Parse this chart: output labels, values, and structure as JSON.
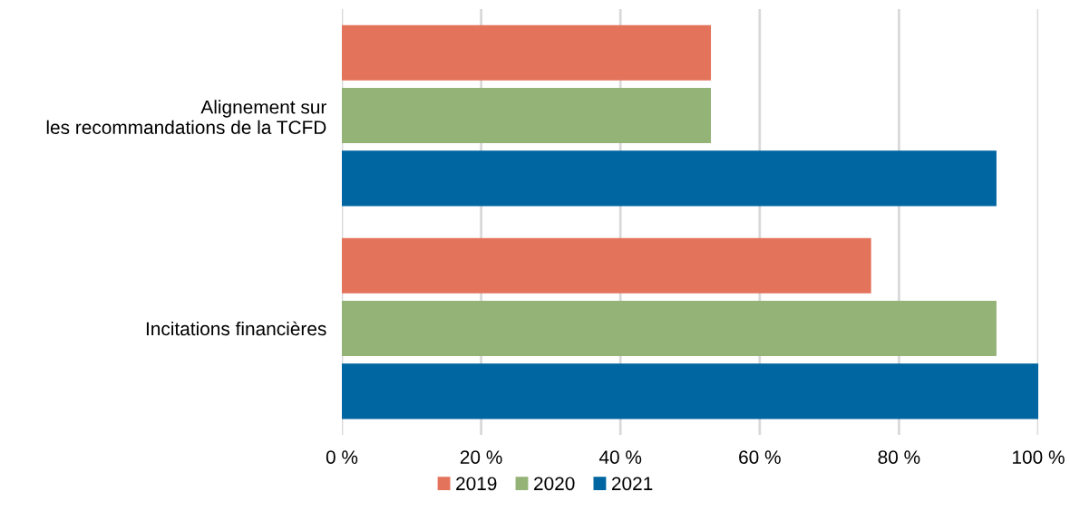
{
  "chart_data": {
    "type": "bar",
    "orientation": "horizontal",
    "categories": [
      "Alignement sur\nles recommandations de la TCFD",
      "Incitations financières"
    ],
    "series": [
      {
        "name": "2019",
        "color": "#e4735c",
        "values": [
          53,
          76
        ]
      },
      {
        "name": "2020",
        "color": "#94b377",
        "values": [
          53,
          94
        ]
      },
      {
        "name": "2021",
        "color": "#0066a1",
        "values": [
          94,
          100
        ]
      }
    ],
    "xlim": [
      0,
      100
    ],
    "xticks": [
      {
        "value": 0,
        "label": "0 %"
      },
      {
        "value": 20,
        "label": "20 %"
      },
      {
        "value": 40,
        "label": "40 %"
      },
      {
        "value": 60,
        "label": "60 %"
      },
      {
        "value": 80,
        "label": "80 %"
      },
      {
        "value": 100,
        "label": "100 %"
      }
    ],
    "grid": "x",
    "legend": "bottom"
  }
}
